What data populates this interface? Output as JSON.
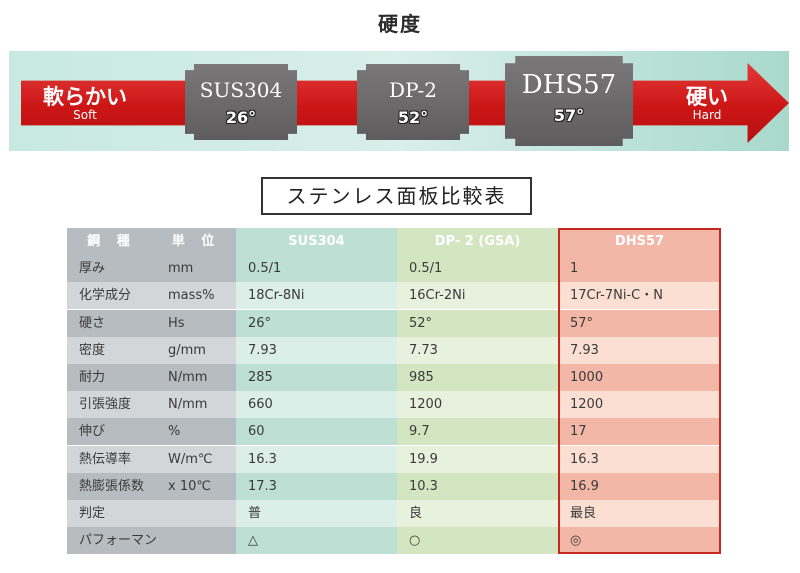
{
  "hardness": {
    "title": "硬度",
    "soft_jp": "軟らかい",
    "soft_en": "Soft",
    "hard_jp": "硬い",
    "hard_en": "Hard",
    "badges": [
      {
        "name": "SUS304",
        "value": "26°"
      },
      {
        "name": "DP-2",
        "value": "52°"
      },
      {
        "name": "DHS57",
        "value": "57°"
      }
    ]
  },
  "table": {
    "title": "ステンレス面板比較表",
    "headers": [
      "鋼 種",
      "単 位",
      "SUS304",
      "DP- 2 (GSA)",
      "DHS57"
    ],
    "rows": [
      [
        "厚み",
        "mm",
        "0.5/1",
        "0.5/1",
        "1"
      ],
      [
        "化学成分",
        "mass%",
        "18Cr-8Ni",
        "16Cr-2Ni",
        "17Cr-7Ni-C・N"
      ],
      [
        "硬さ",
        "Hs",
        "26°",
        "52°",
        "57°"
      ],
      [
        "密度",
        "g/mm",
        "7.93",
        "7.73",
        "7.93"
      ],
      [
        "耐力",
        "N/mm",
        "285",
        "985",
        "1000"
      ],
      [
        "引張強度",
        "N/mm",
        "660",
        "1200",
        "1200"
      ],
      [
        "伸び",
        "%",
        "60",
        "9.7",
        "17"
      ],
      [
        "熱伝導率",
        "W/m℃",
        "16.3",
        "19.9",
        "16.3"
      ],
      [
        "熱膨張係数",
        "x 10℃",
        "17.3",
        "10.3",
        "16.9"
      ],
      [
        "判定",
        "",
        "普",
        "良",
        "最良"
      ],
      [
        "パフォーマンス",
        "",
        "△",
        "○",
        "◎"
      ]
    ]
  },
  "colors": {
    "arrow": "#cc1616",
    "badge": "#6b6969",
    "sus304_header": "#7ac2a6",
    "dp2_header": "#a8d06a",
    "dhs57_header": "#c4281e"
  }
}
